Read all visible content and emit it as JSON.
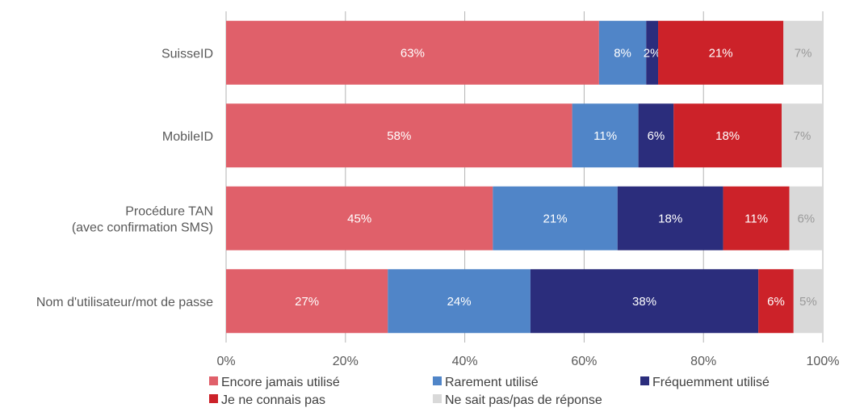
{
  "chart_data": {
    "type": "bar",
    "orientation": "horizontal",
    "stacked": true,
    "categories": [
      [
        "SuisseID"
      ],
      [
        "MobileID"
      ],
      [
        "Procédure TAN",
        "(avec confirmation SMS)"
      ],
      [
        "Nom d'utilisateur/mot de passe"
      ]
    ],
    "series": [
      {
        "name": "Encore jamais utilisé",
        "color": "#E0606A",
        "label_color": "#ffffff",
        "values": [
          62.5,
          58,
          44.7,
          27.1
        ],
        "labels": [
          "63%",
          "58%",
          "45%",
          "27%"
        ]
      },
      {
        "name": "Rarement utilisé",
        "color": "#5085C8",
        "label_color": "#ffffff",
        "values": [
          7.9,
          11.1,
          20.9,
          23.9
        ],
        "labels": [
          "8%",
          "11%",
          "21%",
          "24%"
        ]
      },
      {
        "name": "Fréquemment utilisé",
        "color": "#2B2D7C",
        "label_color": "#ffffff",
        "values": [
          2,
          5.9,
          17.7,
          38.2
        ],
        "labels": [
          "2%",
          "6%",
          "18%",
          "38%"
        ]
      },
      {
        "name": "Je ne connais pas",
        "color": "#CC2229",
        "label_color": "#ffffff",
        "values": [
          21,
          18.1,
          11.1,
          5.9
        ],
        "labels": [
          "21%",
          "18%",
          "11%",
          "6%"
        ]
      },
      {
        "name": "Ne sait pas/pas de réponse",
        "color": "#D9D9D9",
        "label_color": "#9a9a9a",
        "values": [
          6.6,
          6.9,
          5.6,
          4.9
        ],
        "labels": [
          "7%",
          "7%",
          "6%",
          "5%"
        ]
      }
    ],
    "xticks": [
      "0%",
      "20%",
      "40%",
      "60%",
      "80%",
      "100%"
    ],
    "xlim": [
      0,
      100
    ],
    "grid": true,
    "gridline_color": "#b3b3b3",
    "legend_position": "bottom"
  }
}
